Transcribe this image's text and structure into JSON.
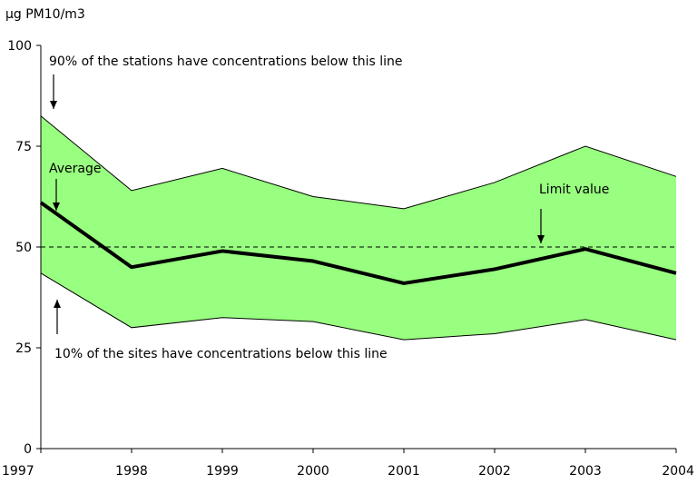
{
  "chart_data": {
    "type": "area",
    "ylabel": "µg PM10/m3",
    "x": [
      "1997",
      "1998",
      "1999",
      "2000",
      "2001",
      "2002",
      "2003",
      "2004"
    ],
    "ylim": [
      0,
      100
    ],
    "yticks": [
      "0",
      "25",
      "50",
      "75",
      "100"
    ],
    "series": [
      {
        "role": "p90",
        "values": [
          82.5,
          64,
          69.5,
          62.5,
          59.5,
          66,
          75,
          67.5
        ]
      },
      {
        "role": "average",
        "values": [
          61,
          45,
          49,
          46.5,
          41,
          44.5,
          49.5,
          43.5
        ]
      },
      {
        "role": "p10",
        "values": [
          43.5,
          30,
          32.5,
          31.5,
          27,
          28.5,
          32,
          27
        ]
      }
    ],
    "limit_value": 50,
    "band_color": "#99ff80",
    "annotations": {
      "p90": "90% of the stations have concentrations below this line",
      "average": "Average",
      "limit": "Limit value",
      "p10": "10% of the sites have concentrations below this line"
    },
    "grid": false,
    "legend": "none"
  }
}
